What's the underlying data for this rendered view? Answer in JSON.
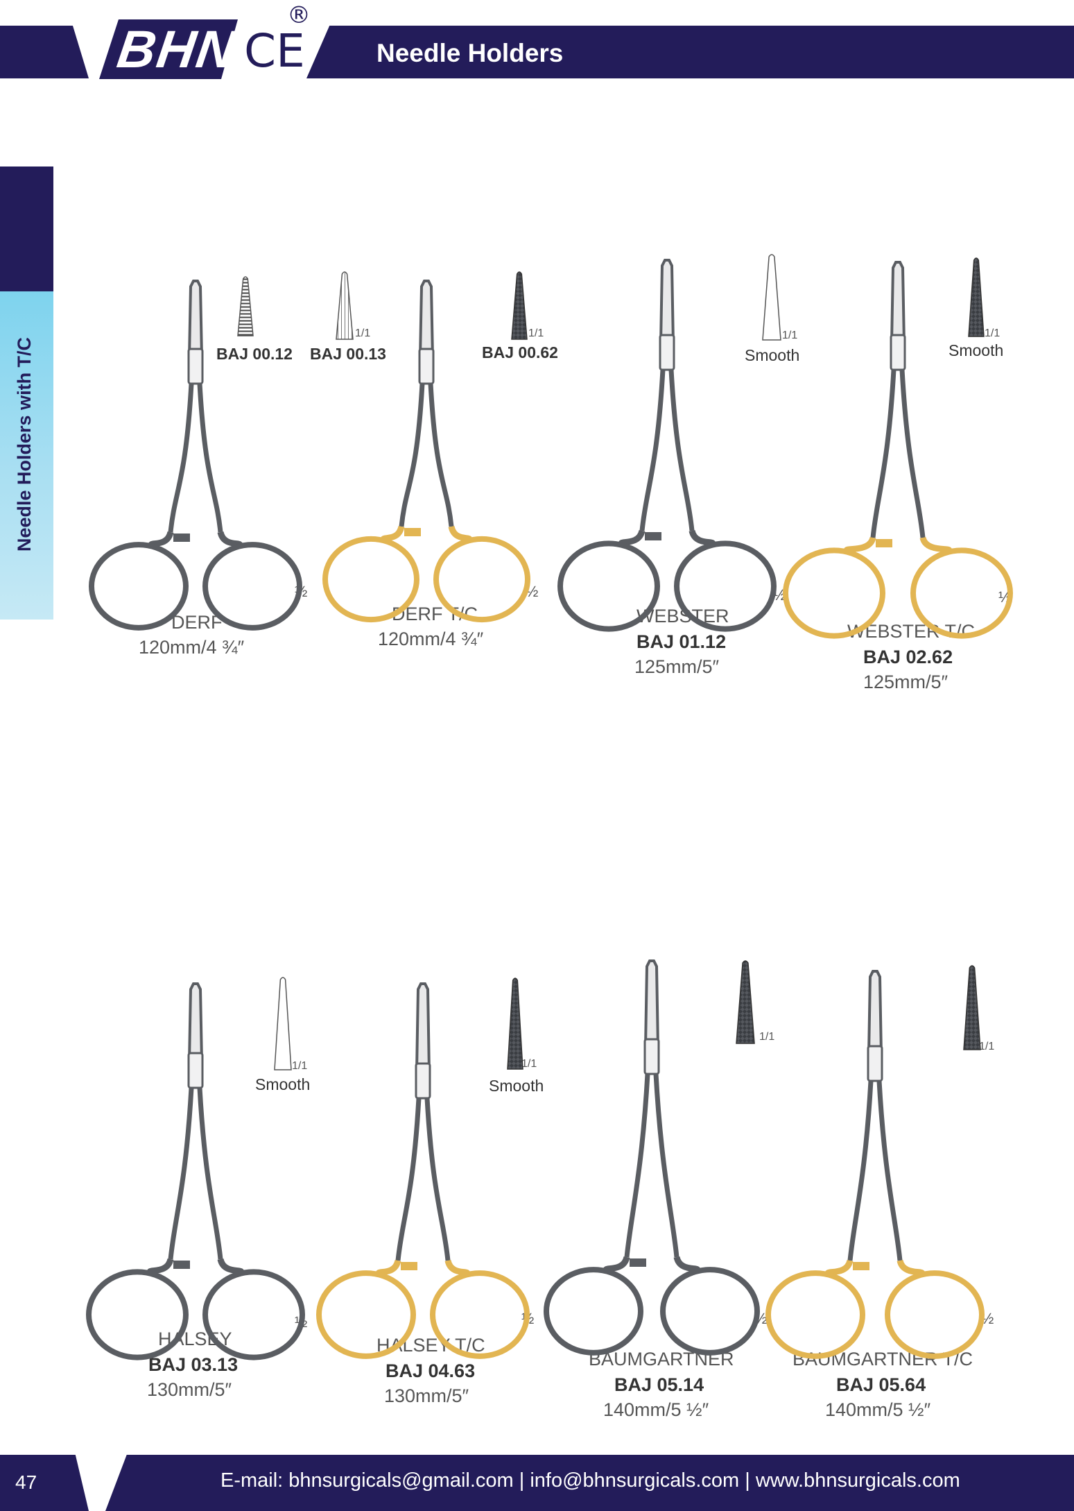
{
  "header": {
    "logo": "BHN",
    "ce": "CE",
    "registered": "®",
    "title": "Needle Holders"
  },
  "side_tab": "Needle Holders with T/C",
  "half_mark": "½",
  "products": [
    {
      "name": "DERF",
      "code": "",
      "size": "120mm/4 ¾″",
      "tc": false
    },
    {
      "name": "DERF T/C",
      "code": "",
      "size": "120mm/4 ¾″",
      "tc": true
    },
    {
      "name": "WEBSTER",
      "code": "BAJ 01.12",
      "size": "125mm/5″",
      "tc": false
    },
    {
      "name": "WEBSTER T/C",
      "code": "BAJ 02.62",
      "size": "125mm/5″",
      "tc": true
    },
    {
      "name": "HALSEY",
      "code": "BAJ 03.13",
      "size": "130mm/5″",
      "tc": false
    },
    {
      "name": "HALSEY T/C",
      "code": "BAJ 04.63",
      "size": "130mm/5″",
      "tc": true
    },
    {
      "name": "BAUMGARTNER",
      "code": "BAJ 05.14",
      "size": "140mm/5 ½″",
      "tc": false
    },
    {
      "name": "BAUMGARTNER T/C",
      "code": "BAJ 05.64",
      "size": "140mm/5 ½″",
      "tc": true
    }
  ],
  "tips": [
    {
      "label": "BAJ 00.12",
      "scale": "",
      "style": "serrated"
    },
    {
      "label": "BAJ 00.13",
      "scale": "1/1",
      "style": "lined"
    },
    {
      "label": "BAJ 00.62",
      "scale": "1/1",
      "style": "dark"
    },
    {
      "label": "Smooth",
      "scale": "1/1",
      "style": "smooth"
    },
    {
      "label": "Smooth",
      "scale": "1/1",
      "style": "dark"
    },
    {
      "label": "Smooth",
      "scale": "1/1",
      "style": "smooth"
    },
    {
      "label": "Smooth",
      "scale": "1/1",
      "style": "dark"
    },
    {
      "label": "",
      "scale": "1/1",
      "style": "dark"
    },
    {
      "label": "",
      "scale": "1/1",
      "style": "dark"
    }
  ],
  "footer": {
    "page": "47",
    "contact": "E-mail: bhnsurgicals@gmail.com   |   info@bhnsurgicals.com  |   www.bhnsurgicals.com"
  },
  "colors": {
    "navy": "#231c5a",
    "steel": "#5a5d62",
    "gold": "#e2b552",
    "light_blue": "#7ed3ee"
  }
}
